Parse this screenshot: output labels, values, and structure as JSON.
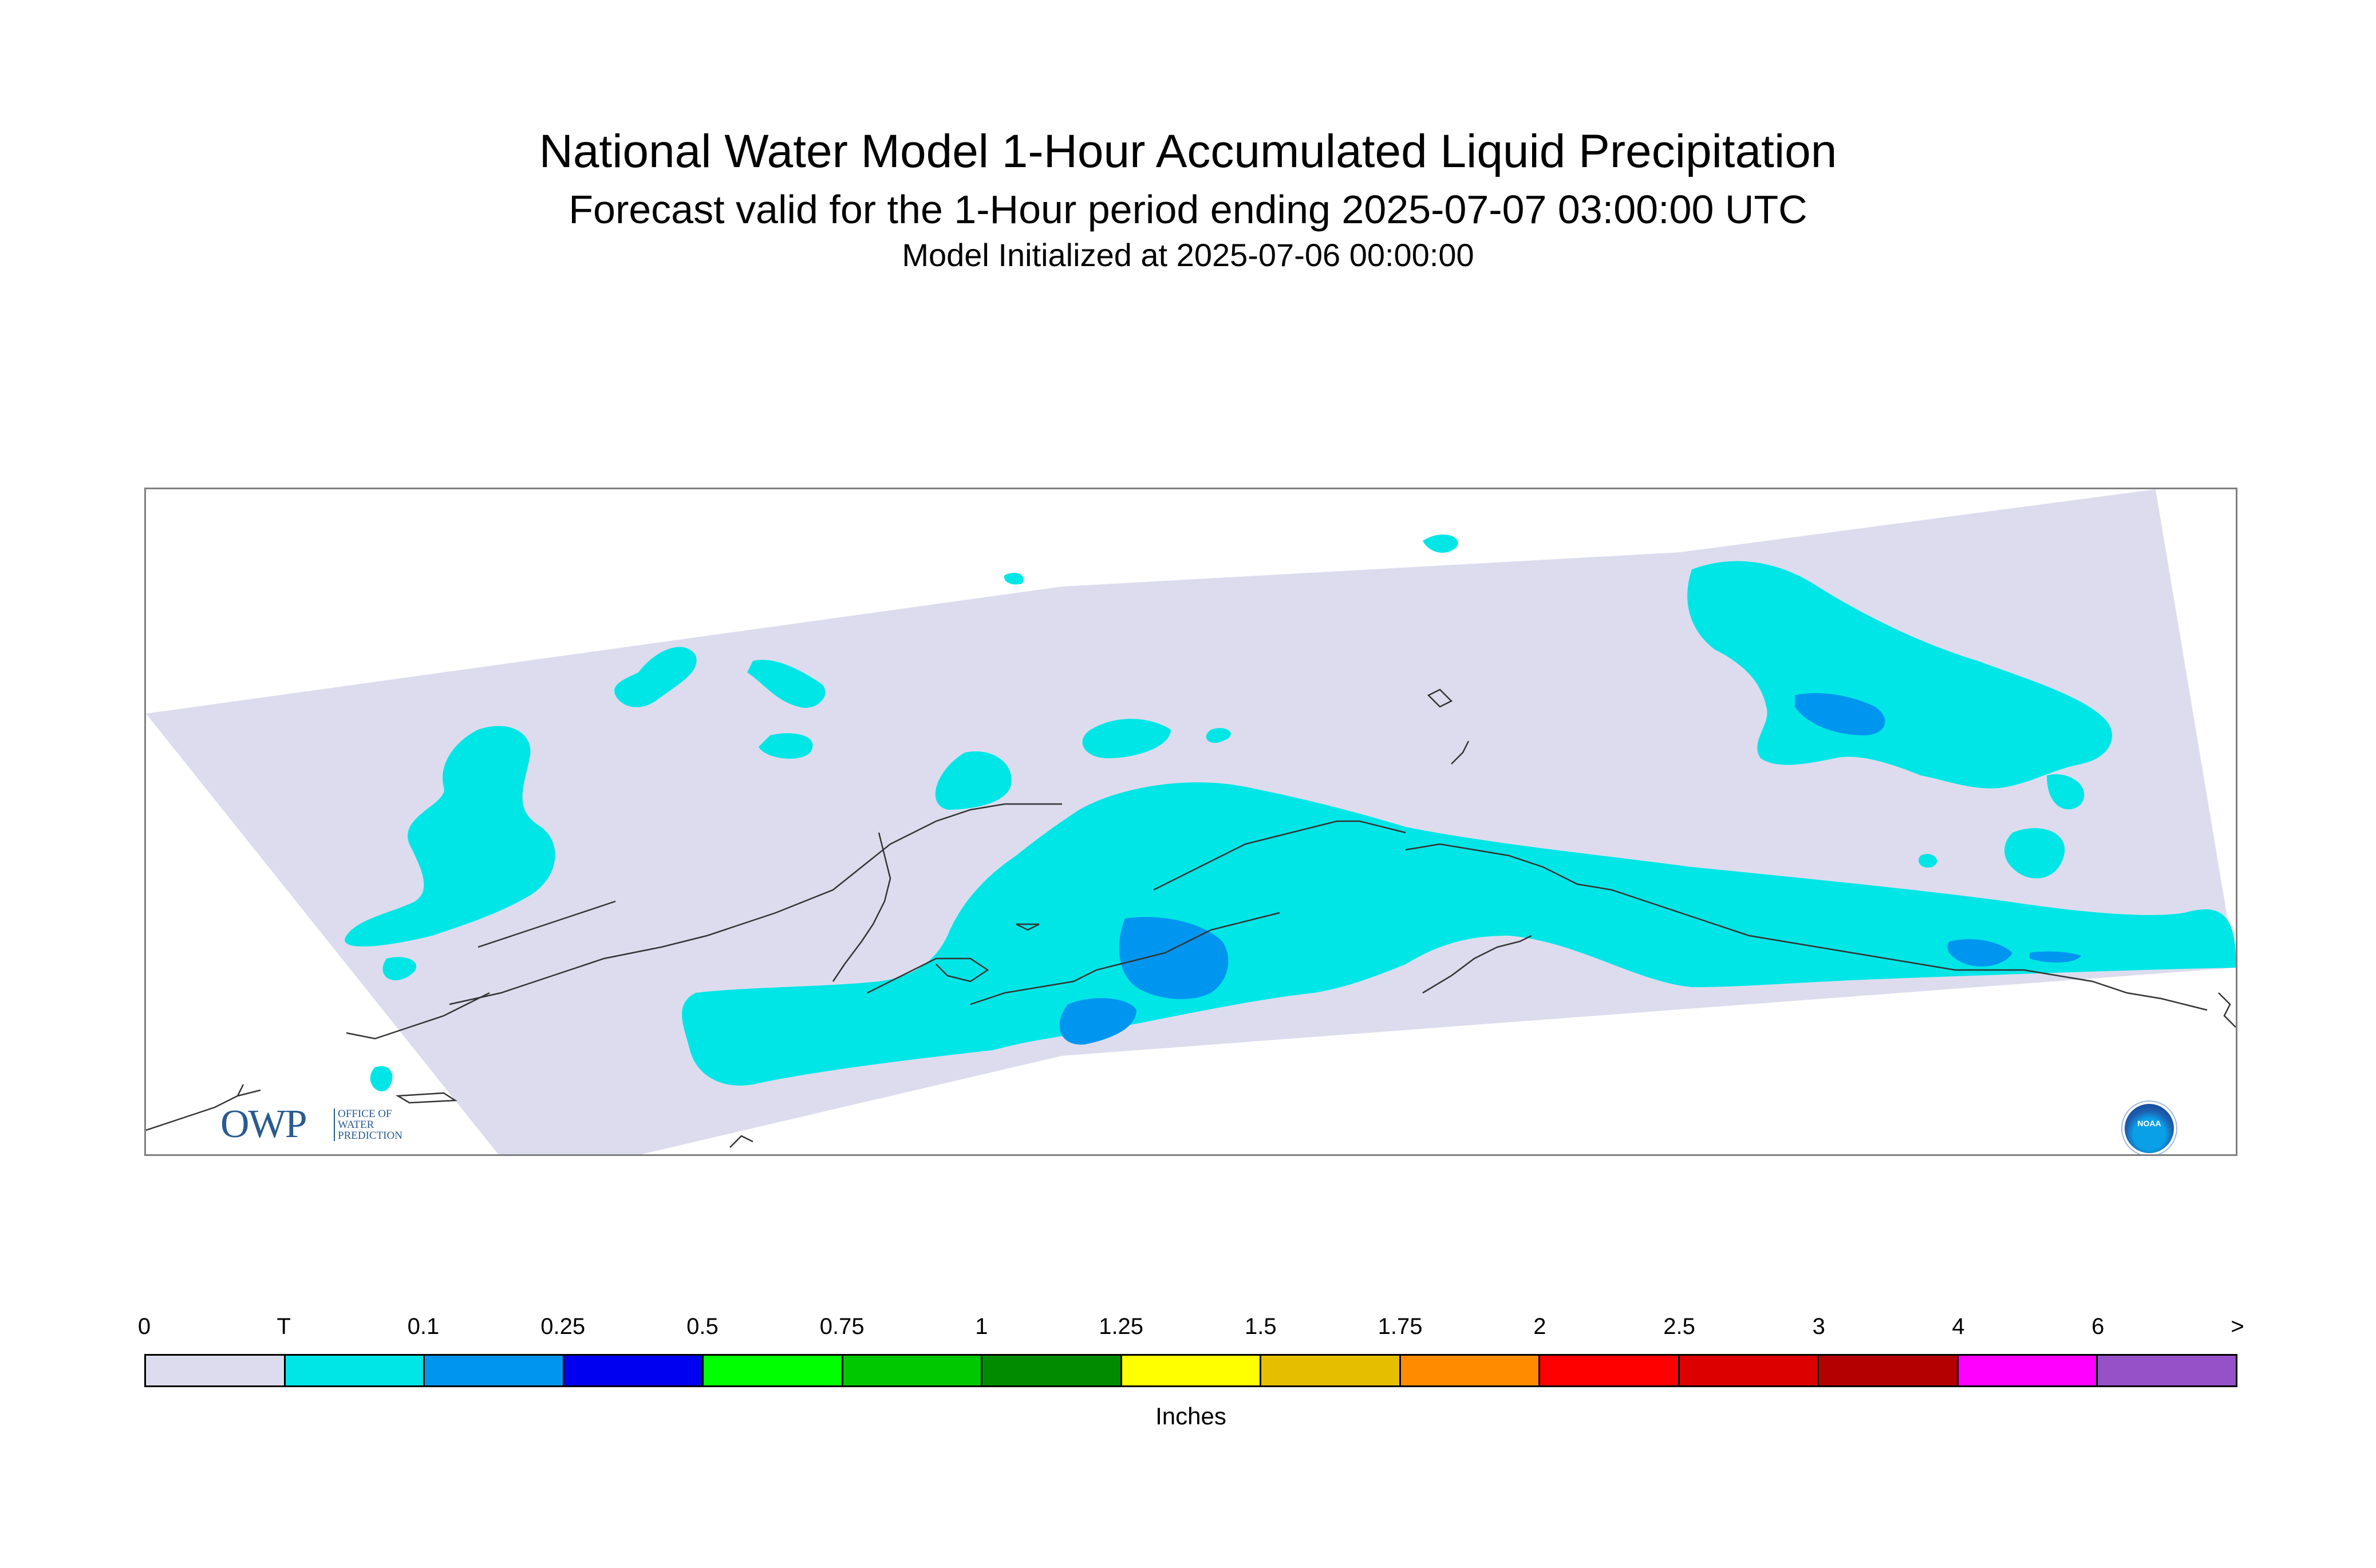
{
  "header": {
    "title": "National Water Model 1-Hour Accumulated Liquid Precipitation",
    "subtitle": "Forecast valid for the 1-Hour period ending 2025-07-07 03:00:00 UTC",
    "init_line": "Model Initialized at 2025-07-06 00:00:00"
  },
  "logos": {
    "owp_main": "OWP",
    "owp_small_1": "OFFICE OF",
    "owp_small_2": "WATER",
    "owp_small_3": "PREDICTION",
    "noaa_text": "NOAA"
  },
  "colors": {
    "zero": "#dcdcee",
    "trace": "#00e6e6",
    "light_blue": "#0096f0",
    "coastline": "#333333"
  },
  "legend": {
    "ticks": [
      "0",
      "T",
      "0.1",
      "0.25",
      "0.5",
      "0.75",
      "1",
      "1.25",
      "1.5",
      "1.75",
      "2",
      "2.5",
      "3",
      "4",
      "6",
      ">"
    ],
    "colors": [
      "#dcdcee",
      "#00e6e6",
      "#0096f0",
      "#0000f0",
      "#00ff00",
      "#00c800",
      "#008c00",
      "#ffff00",
      "#e6be00",
      "#ff8c00",
      "#ff0000",
      "#dc0000",
      "#b40000",
      "#ff00ff",
      "#9650c8"
    ],
    "units": "Inches"
  }
}
